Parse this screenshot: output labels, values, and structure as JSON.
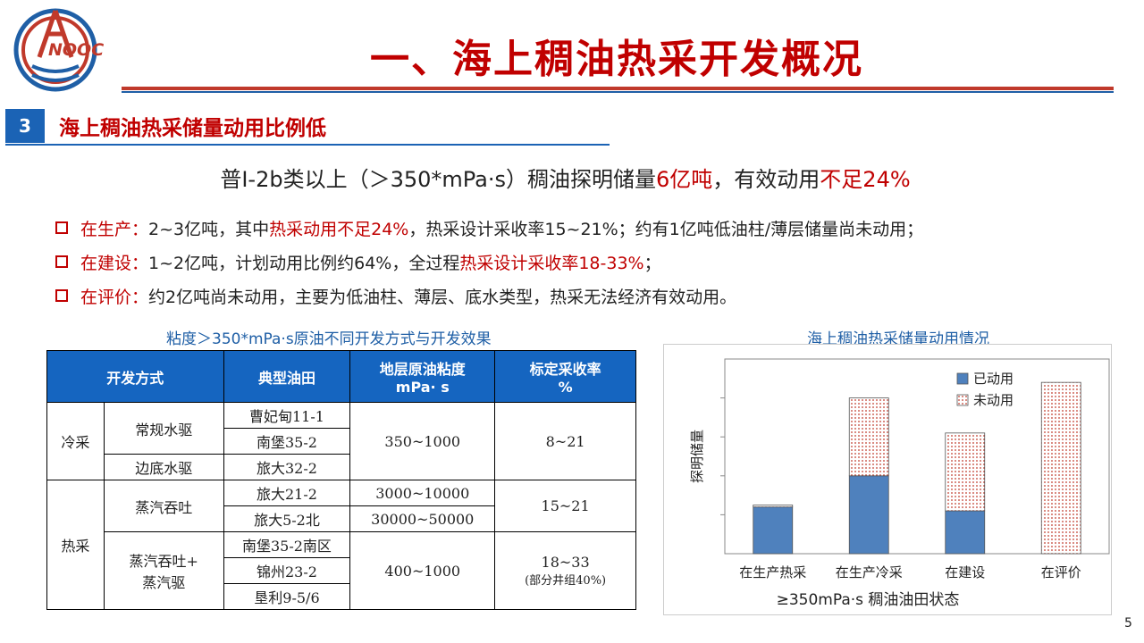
{
  "logo": {
    "text": "NOOC"
  },
  "title": "一、海上稠油热采开发概况",
  "section": {
    "number": "3",
    "title": "海上稠油热采储量动用比例低"
  },
  "headline": {
    "part1": "普Ⅰ-2b类以上（＞350*mPa·s）稠油探明储量",
    "red1": "6亿吨",
    "part2": "，有效动用",
    "red2": "不足24%"
  },
  "bullets": [
    {
      "label": "在生产：",
      "t1": "2~3亿吨，其中",
      "r1": "热采动用不足24%",
      "t2": "，热采设计采收率15~21%；约有1亿吨低油柱/薄层储量尚未动用；"
    },
    {
      "label": "在建设：",
      "t1": "1~2亿吨，计划动用比例约64%，全过程",
      "r1": "热采设计采收率18-33%",
      "t2": "；"
    },
    {
      "label": "在评价：",
      "t1": "约2亿吨尚未动用，主要为低油柱、薄层、底水类型，热采无法经济有效动用。",
      "r1": "",
      "t2": ""
    }
  ],
  "table": {
    "caption": "粘度＞350*mPa·s原油不同开发方式与开发效果",
    "headers": {
      "method": "开发方式",
      "field": "典型油田",
      "visc1": "地层原油粘度",
      "visc2": "mPa· s",
      "rec1": "标定采收率",
      "rec2": "%"
    },
    "cold": "冷采",
    "hot": "热采",
    "sub": {
      "s1": "常规水驱",
      "s2": "边底水驱",
      "s3": "蒸汽吞吐",
      "s4a": "蒸汽吞吐+",
      "s4b": "蒸汽驱"
    },
    "fields": [
      "曹妃甸11-1",
      "南堡35-2",
      "旅大32-2",
      "旅大21-2",
      "旅大5-2北",
      "南堡35-2南区",
      "锦州23-2",
      "垦利9-5/6"
    ],
    "visc": {
      "v1": "350~1000",
      "v2": "3000~10000",
      "v3": "30000~50000",
      "v4": "400~1000"
    },
    "rec": {
      "r1": "8~21",
      "r2": "15~21",
      "r3": "18~33",
      "r3note": "(部分井组40%)"
    }
  },
  "chart_data": {
    "type": "bar",
    "title": "海上稠油热采储量动用情况",
    "xlabel": "≥350mPa·s 稠油油田状态",
    "ylabel": "探明储量",
    "categories": [
      "在生产热采",
      "在生产冷采",
      "在建设",
      "在评价"
    ],
    "series": [
      {
        "name": "已动用",
        "values": [
          1.2,
          2.0,
          1.1,
          0
        ],
        "color": "#4f81bd"
      },
      {
        "name": "未动用",
        "values": [
          0.05,
          2.0,
          2.0,
          4.4
        ],
        "color": "#f4d0c8"
      }
    ],
    "ylim": [
      0,
      5
    ],
    "legend": "top-right"
  },
  "page_number": "5"
}
